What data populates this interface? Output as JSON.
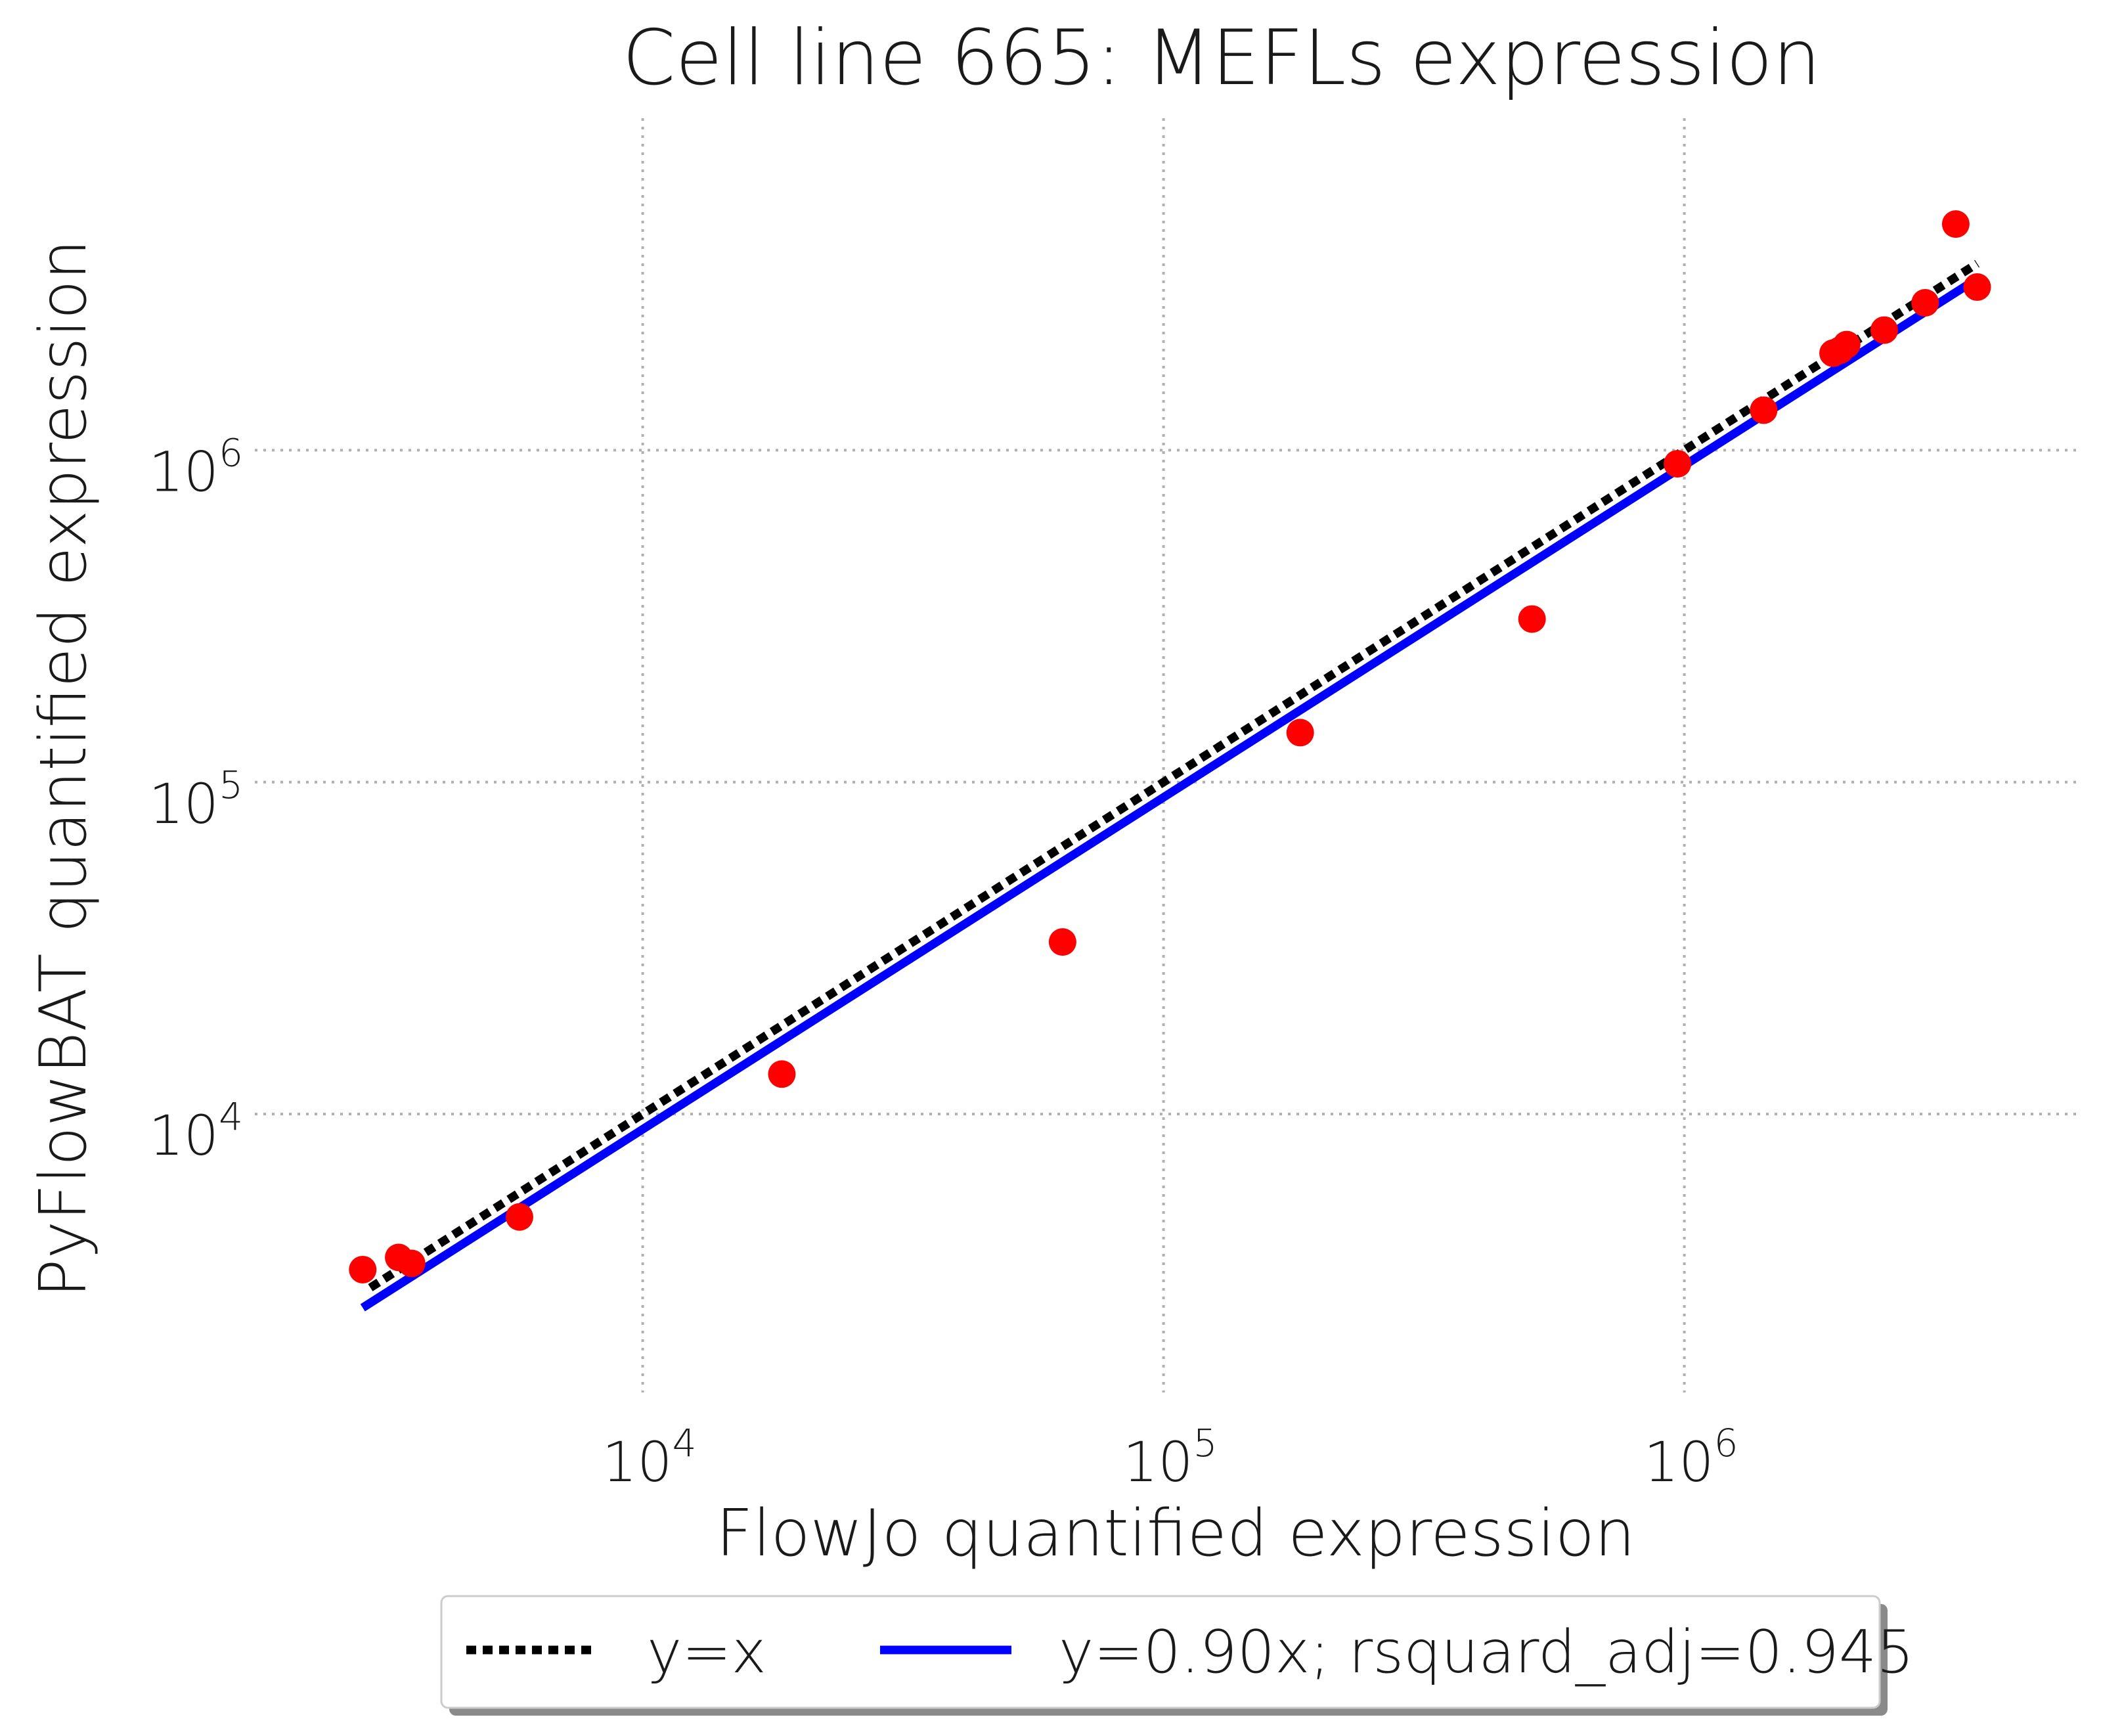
{
  "chart_data": {
    "type": "scatter",
    "title": "Cell line 665: MEFLs expression",
    "xlabel": "FlowJo quantified expression",
    "ylabel": "PyFlowBAT quantified expression",
    "xscale": "log",
    "yscale": "log",
    "xlim": [
      1800,
      5800000
    ],
    "ylim": [
      1450,
      10000000
    ],
    "grid": true,
    "grid_style": "dotted",
    "x_ticks": [
      {
        "value": 10000,
        "base": "10",
        "exp": "4"
      },
      {
        "value": 100000,
        "base": "10",
        "exp": "5"
      },
      {
        "value": 1000000,
        "base": "10",
        "exp": "6"
      }
    ],
    "y_ticks": [
      {
        "value": 10000,
        "base": "10",
        "exp": "4"
      },
      {
        "value": 100000,
        "base": "10",
        "exp": "5"
      },
      {
        "value": 1000000,
        "base": "10",
        "exp": "6"
      }
    ],
    "points": {
      "color": "#ff0000",
      "x": [
        2900,
        3400,
        3600,
        5800,
        18500,
        64000,
        183000,
        510000,
        970000,
        1420000,
        1930000,
        1990000,
        2050000,
        2420000,
        2900000,
        3320000,
        3650000
      ],
      "y": [
        3400,
        3700,
        3550,
        4900,
        13200,
        33000,
        141000,
        310000,
        910000,
        1320000,
        1960000,
        2000000,
        2080000,
        2300000,
        2780000,
        4800000,
        3100000
      ]
    },
    "lines": [
      {
        "name": "y=x",
        "slope": 1.0,
        "color": "#000000",
        "style": "dotted",
        "x_range": [
          3000,
          3650000
        ]
      },
      {
        "name": "y=0.90x; rsquard_adj=0.945",
        "slope": 0.9,
        "color": "#0000ff",
        "style": "solid",
        "x_range": [
          2900,
          3650000
        ]
      }
    ],
    "legend": {
      "placement": "bottom-center-outside",
      "entries": [
        "y=x",
        "y=0.90x; rsquard_adj=0.945"
      ]
    }
  }
}
